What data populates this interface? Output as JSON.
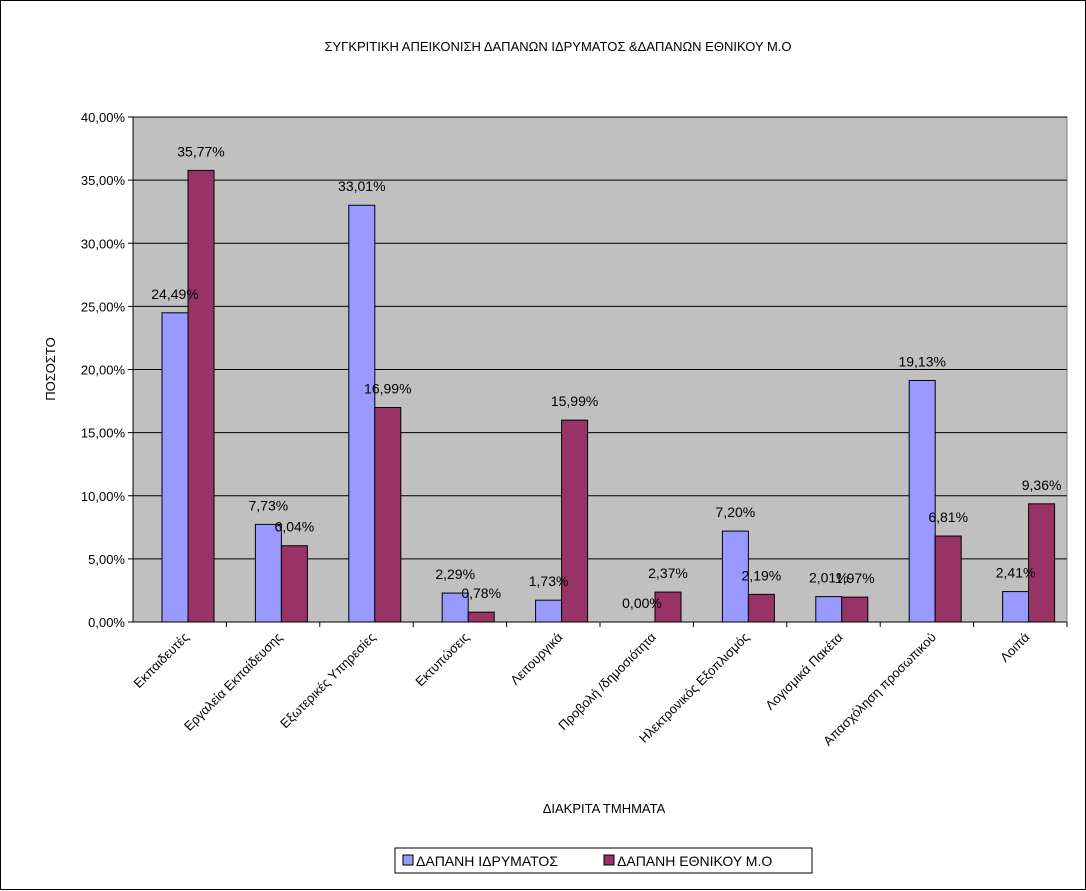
{
  "chart_data": {
    "type": "bar",
    "title": "ΣΥΓΚΡΙΤΙΚΗ ΑΠΕΙΚΟΝΙΣΗ ΔΑΠΑΝΩΝ ΙΔΡΥΜΑΤΟΣ &ΔΑΠΑΝΩΝ ΕΘΝΙΚΟΥ Μ.Ο",
    "xlabel": "ΔΙΑΚΡΙΤΑ ΤΜΗΜΑΤΑ",
    "ylabel": "ΠΟΣΟΣΤΟ",
    "ylim": [
      0,
      40
    ],
    "y_ticks": [
      "0,00%",
      "5,00%",
      "10,00%",
      "15,00%",
      "20,00%",
      "25,00%",
      "30,00%",
      "35,00%",
      "40,00%"
    ],
    "grid": true,
    "legend_position": "bottom",
    "categories": [
      "Εκπαιδευτές",
      "Εργαλεία Εκπαίδευσης",
      "Εξωτερικές Υπηρεσίες",
      "Εκτυπώσεις",
      "Λειτουργικά",
      "Προβολή /δημοσιότητα",
      "Ηλεκτρονικός Εξοπλισμός",
      "Λογισμικά Πακέτα",
      "Απασχόληση προσωπικού",
      "Λοιπά"
    ],
    "series": [
      {
        "name": "ΔΑΠΑΝΗ ΙΔΡΥΜΑΤΟΣ",
        "color": "#9999ff",
        "values": [
          24.49,
          7.73,
          33.01,
          2.29,
          1.73,
          0.0,
          7.2,
          2.01,
          19.13,
          2.41
        ],
        "labels": [
          "24,49%",
          "7,73%",
          "33,01%",
          "2,29%",
          "1,73%",
          "0,00%",
          "7,20%",
          "2,01%",
          "19,13%",
          "2,41%"
        ]
      },
      {
        "name": "ΔΑΠΑΝΗ ΕΘΝΙΚΟΥ Μ.Ο",
        "color": "#993366",
        "values": [
          35.77,
          6.04,
          16.99,
          0.78,
          15.99,
          2.37,
          2.19,
          1.97,
          6.81,
          9.36
        ],
        "labels": [
          "35,77%",
          "6,04%",
          "16,99%",
          "0,78%",
          "15,99%",
          "2,37%",
          "2,19%",
          "1,97%",
          "6,81%",
          "9,36%"
        ]
      }
    ],
    "plot_background": "#c0c0c0"
  }
}
